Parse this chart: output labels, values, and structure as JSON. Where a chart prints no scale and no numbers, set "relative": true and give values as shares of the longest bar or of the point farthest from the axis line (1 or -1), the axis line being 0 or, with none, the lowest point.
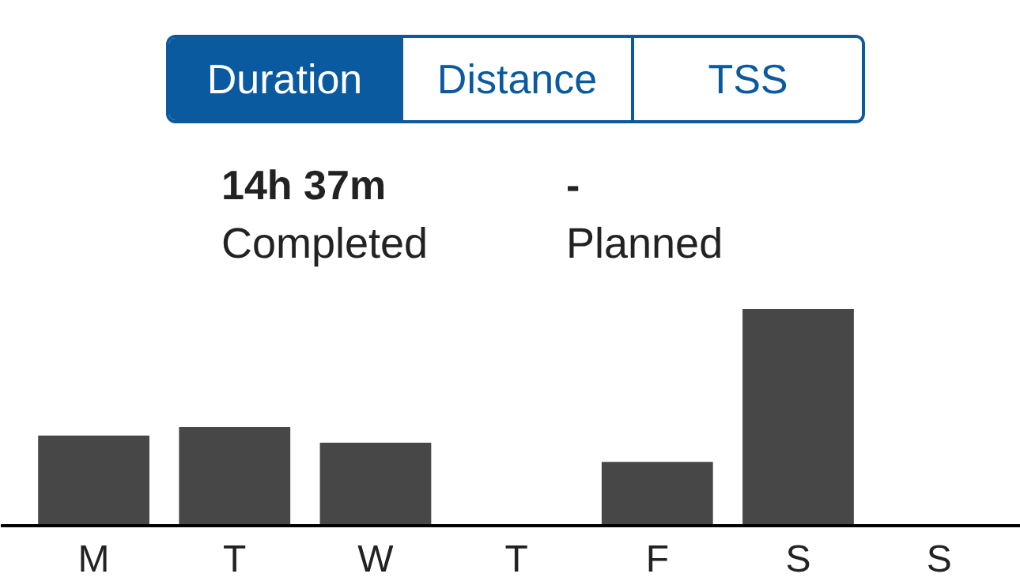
{
  "chart_data": {
    "type": "bar",
    "relative": true,
    "categories": [
      "M",
      "T",
      "W",
      "T",
      "F",
      "S",
      "S"
    ],
    "values": [
      0.416,
      0.456,
      0.383,
      0,
      0.295,
      1,
      0
    ],
    "color": "#474747",
    "grid": false,
    "annotations": [
      "Duration",
      "Distance",
      "TSS",
      "14h 37m",
      "Completed",
      "-",
      "Planned"
    ]
  }
}
